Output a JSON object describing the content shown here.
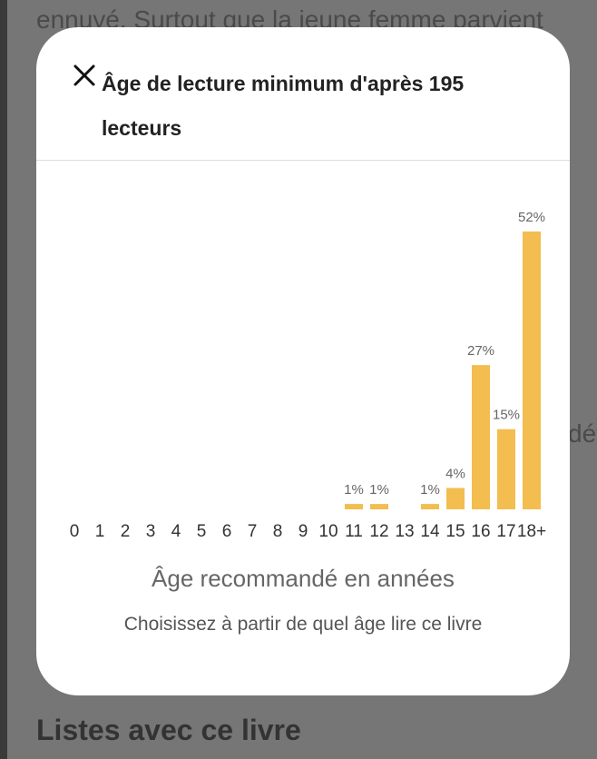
{
  "background": {
    "top_text": "ennuyé. Surtout que la jeune femme parvient",
    "right_text": "dét",
    "section_heading": "Listes avec ce livre"
  },
  "modal": {
    "title": "Âge de lecture minimum d'après 195 lecteurs",
    "close_icon": "close-icon",
    "subtitle": "Choisissez à partir de quel âge lire ce livre"
  },
  "colors": {
    "bar": "#F3BD4F",
    "label": "#666666",
    "tick": "#333333"
  },
  "chart_data": {
    "type": "bar",
    "title": "",
    "xlabel": "Âge recommandé en années",
    "ylabel": "",
    "categories": [
      "0",
      "1",
      "2",
      "3",
      "4",
      "5",
      "6",
      "7",
      "8",
      "9",
      "10",
      "11",
      "12",
      "13",
      "14",
      "15",
      "16",
      "17",
      "18+"
    ],
    "values": [
      0,
      0,
      0,
      0,
      0,
      0,
      0,
      0,
      0,
      0,
      0,
      1,
      1,
      0,
      1,
      4,
      27,
      15,
      52
    ],
    "labels": [
      "",
      "",
      "",
      "",
      "",
      "",
      "",
      "",
      "",
      "",
      "",
      "1%",
      "1%",
      "",
      "1%",
      "4%",
      "27%",
      "15%",
      "52%"
    ],
    "unit": "%",
    "ylim": [
      0,
      52
    ],
    "grid": false,
    "legend": "none"
  }
}
